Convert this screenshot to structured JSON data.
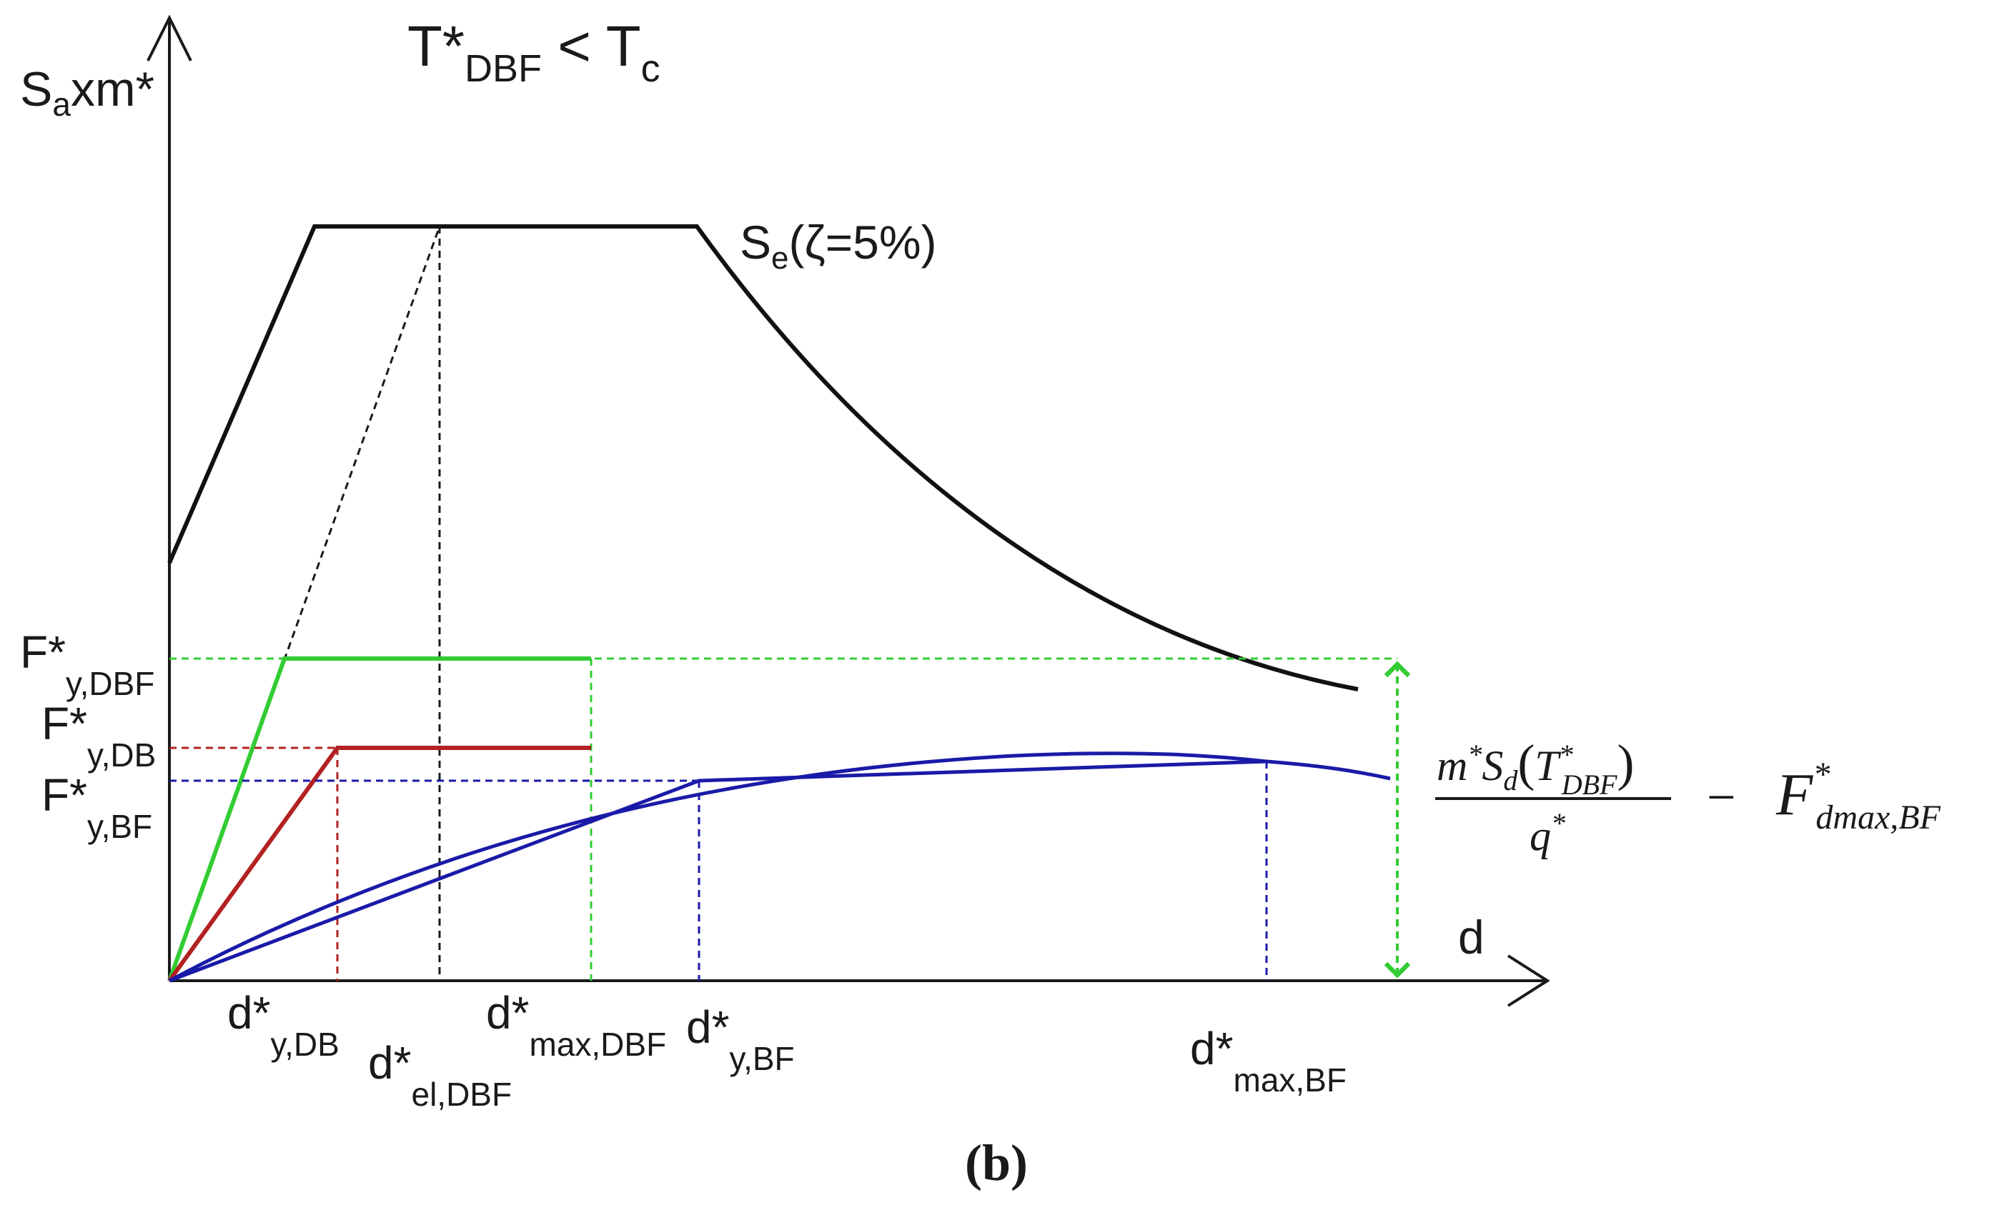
{
  "title": {
    "base": "T*",
    "sub": "DBF",
    "rel": " < T",
    "sub2": "c"
  },
  "y_axis_label": {
    "base": "S",
    "sub": "a",
    "rest": "xm*"
  },
  "x_axis_label": "d",
  "spectrum_label": {
    "base": "S",
    "sub": "e",
    "rest": "(ζ=5%)"
  },
  "force_labels": {
    "f_y_dbf": {
      "base": "F*",
      "sub": "y,DBF"
    },
    "f_y_db": {
      "base": "F*",
      "sub": "y,DB"
    },
    "f_y_bf": {
      "base": "F*",
      "sub": "y,BF"
    }
  },
  "disp_labels": {
    "d_y_db": {
      "base": "d*",
      "sub": "y,DB"
    },
    "d_el_dbf": {
      "base": "d*",
      "sub": "el,DBF"
    },
    "d_max_dbf": {
      "base": "d*",
      "sub": "max,DBF"
    },
    "d_y_bf": {
      "base": "d*",
      "sub": "y,BF"
    },
    "d_max_bf": {
      "base": "d*",
      "sub": "max,BF"
    }
  },
  "formula": {
    "numerator": {
      "m": "m",
      "sup1": "*",
      "S": "S",
      "subd": "d",
      "paren_open": "(",
      "T": "T",
      "supT": "*",
      "subT": "DBF",
      "paren_close": ")"
    },
    "denominator": {
      "q": "q",
      "sup": "*"
    },
    "minus": "−",
    "F": {
      "base": "F",
      "sup": "*",
      "sub": "dmax,BF"
    }
  },
  "panel_label": "(b)",
  "colors": {
    "axis": "#1a1a1a",
    "spectrum": "#111111",
    "dbf": "#33cc33",
    "db": "#b22222",
    "bf": "#1a1aa8",
    "arrow": "#33cc33"
  }
}
